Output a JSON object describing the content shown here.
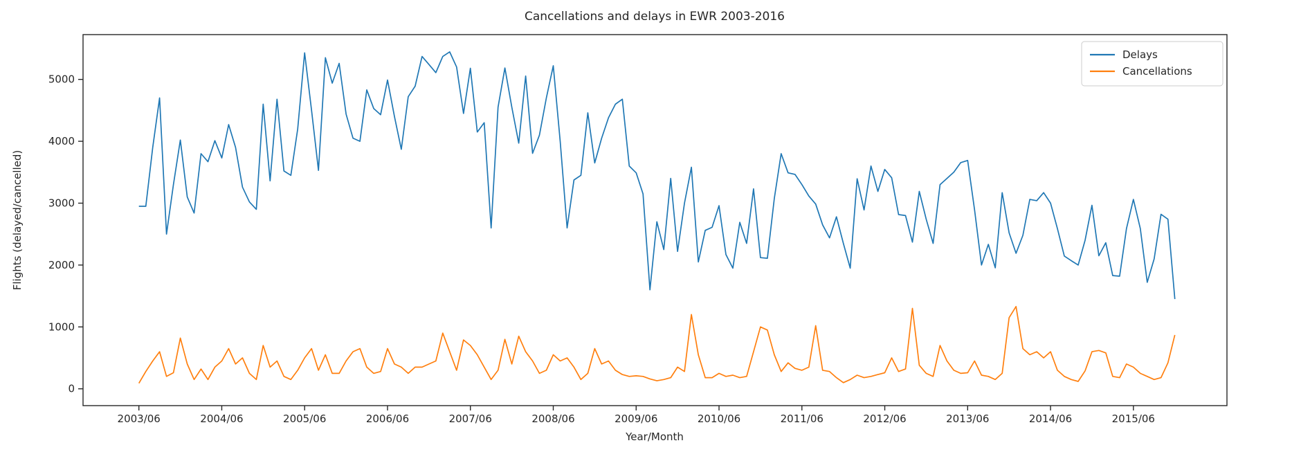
{
  "figure": {
    "title": "Cancellations and delays in EWR 2003-2016",
    "xlabel": "Year/Month",
    "ylabel": "Flights (delayed/cancelled)",
    "background": "#ffffff",
    "spine_color": "#262626"
  },
  "legend": {
    "position": "upper right",
    "items": [
      {
        "label": "Delays",
        "color": "#1f77b4"
      },
      {
        "label": "Cancellations",
        "color": "#ff7f0e"
      }
    ]
  },
  "axes": {
    "x_tick_labels": [
      "2003/06",
      "2004/06",
      "2005/06",
      "2006/06",
      "2007/06",
      "2008/06",
      "2009/06",
      "2010/06",
      "2011/06",
      "2012/06",
      "2013/06",
      "2014/06",
      "2015/06"
    ],
    "x_tick_month_index": [
      0,
      12,
      24,
      36,
      48,
      60,
      72,
      84,
      96,
      108,
      120,
      132,
      144
    ],
    "y_tick_labels": [
      "0",
      "1000",
      "2000",
      "3000",
      "4000",
      "5000"
    ],
    "y_tick_values": [
      0,
      1000,
      2000,
      3000,
      4000,
      5000
    ],
    "grid": false
  },
  "chart_data": {
    "type": "line",
    "title": "Cancellations and delays in EWR 2003-2016",
    "xlabel": "Year/Month",
    "ylabel": "Flights (delayed/cancelled)",
    "x_start": "2003/06",
    "x_end": "2015/12",
    "ylim": [
      -270,
      5730
    ],
    "legend_position": "upper right",
    "x": [
      "2003/06",
      "2003/07",
      "2003/08",
      "2003/09",
      "2003/10",
      "2003/11",
      "2003/12",
      "2004/01",
      "2004/02",
      "2004/03",
      "2004/04",
      "2004/05",
      "2004/06",
      "2004/07",
      "2004/08",
      "2004/09",
      "2004/10",
      "2004/11",
      "2004/12",
      "2005/01",
      "2005/02",
      "2005/03",
      "2005/04",
      "2005/05",
      "2005/06",
      "2005/07",
      "2005/08",
      "2005/09",
      "2005/10",
      "2005/11",
      "2005/12",
      "2006/01",
      "2006/02",
      "2006/03",
      "2006/04",
      "2006/05",
      "2006/06",
      "2006/07",
      "2006/08",
      "2006/09",
      "2006/10",
      "2006/11",
      "2006/12",
      "2007/01",
      "2007/02",
      "2007/03",
      "2007/04",
      "2007/05",
      "2007/06",
      "2007/07",
      "2007/08",
      "2007/09",
      "2007/10",
      "2007/11",
      "2007/12",
      "2008/01",
      "2008/02",
      "2008/03",
      "2008/04",
      "2008/05",
      "2008/06",
      "2008/07",
      "2008/08",
      "2008/09",
      "2008/10",
      "2008/11",
      "2008/12",
      "2009/01",
      "2009/02",
      "2009/03",
      "2009/04",
      "2009/05",
      "2009/06",
      "2009/07",
      "2009/08",
      "2009/09",
      "2009/10",
      "2009/11",
      "2009/12",
      "2010/01",
      "2010/02",
      "2010/03",
      "2010/04",
      "2010/05",
      "2010/06",
      "2010/07",
      "2010/08",
      "2010/09",
      "2010/10",
      "2010/11",
      "2010/12",
      "2011/01",
      "2011/02",
      "2011/03",
      "2011/04",
      "2011/05",
      "2011/06",
      "2011/07",
      "2011/08",
      "2011/09",
      "2011/10",
      "2011/11",
      "2011/12",
      "2012/01",
      "2012/02",
      "2012/03",
      "2012/04",
      "2012/05",
      "2012/06",
      "2012/07",
      "2012/08",
      "2012/09",
      "2012/10",
      "2012/11",
      "2012/12",
      "2013/01",
      "2013/02",
      "2013/03",
      "2013/04",
      "2013/05",
      "2013/06",
      "2013/07",
      "2013/08",
      "2013/09",
      "2013/10",
      "2013/11",
      "2013/12",
      "2014/01",
      "2014/02",
      "2014/03",
      "2014/04",
      "2014/05",
      "2014/06",
      "2014/07",
      "2014/08",
      "2014/09",
      "2014/10",
      "2014/11",
      "2014/12",
      "2015/01",
      "2015/02",
      "2015/03",
      "2015/04",
      "2015/05",
      "2015/06",
      "2015/07",
      "2015/08",
      "2015/09",
      "2015/10",
      "2015/11",
      "2015/12"
    ],
    "series": [
      {
        "name": "Delays",
        "color": "#1f77b4",
        "values": [
          2950,
          2950,
          3900,
          4700,
          2500,
          3300,
          4020,
          3100,
          2840,
          3800,
          3670,
          4010,
          3730,
          4270,
          3900,
          3260,
          3020,
          2900,
          4600,
          3360,
          4680,
          3520,
          3450,
          4200,
          5430,
          4500,
          3530,
          5350,
          4940,
          5260,
          4440,
          4050,
          4000,
          4830,
          4530,
          4430,
          4990,
          4400,
          3870,
          4720,
          4890,
          5370,
          5240,
          5110,
          5370,
          5445,
          5200,
          4450,
          5180,
          4150,
          4300,
          2600,
          4550,
          5185,
          4550,
          3970,
          5055,
          3805,
          4100,
          4700,
          5220,
          4000,
          2600,
          3375,
          3450,
          4460,
          3650,
          4050,
          4380,
          4600,
          4680,
          3600,
          3490,
          3150,
          1600,
          2700,
          2250,
          3400,
          2220,
          3000,
          3580,
          2050,
          2560,
          2610,
          2960,
          2170,
          1950,
          2690,
          2350,
          3230,
          2120,
          2110,
          3075,
          3800,
          3490,
          3465,
          3300,
          3115,
          2985,
          2650,
          2440,
          2780,
          2350,
          1950,
          3395,
          2890,
          3600,
          3190,
          3545,
          3410,
          2815,
          2800,
          2370,
          3190,
          2740,
          2350,
          3300,
          3400,
          3500,
          3655,
          3690,
          2890,
          2000,
          2335,
          1955,
          3170,
          2520,
          2190,
          2480,
          3060,
          3040,
          3170,
          3000,
          2590,
          2145,
          2070,
          2000,
          2400,
          2965,
          2150,
          2360,
          1830,
          1820,
          2590,
          3060,
          2590,
          1720,
          2100,
          2820,
          2740,
          1450
        ]
      },
      {
        "name": "Cancellations",
        "color": "#ff7f0e",
        "values": [
          90,
          280,
          450,
          600,
          200,
          260,
          820,
          400,
          150,
          320,
          150,
          350,
          450,
          650,
          400,
          500,
          250,
          150,
          700,
          350,
          450,
          200,
          150,
          300,
          500,
          650,
          300,
          550,
          250,
          250,
          450,
          600,
          650,
          350,
          250,
          280,
          650,
          400,
          350,
          250,
          350,
          350,
          400,
          450,
          900,
          600,
          300,
          790,
          700,
          550,
          350,
          150,
          300,
          800,
          400,
          850,
          600,
          450,
          250,
          300,
          550,
          450,
          500,
          350,
          150,
          250,
          650,
          400,
          450,
          300,
          230,
          200,
          210,
          200,
          160,
          130,
          150,
          180,
          350,
          280,
          1200,
          550,
          180,
          180,
          250,
          200,
          220,
          180,
          200,
          600,
          1000,
          950,
          550,
          280,
          420,
          330,
          300,
          350,
          1020,
          300,
          280,
          180,
          100,
          150,
          220,
          180,
          200,
          230,
          260,
          500,
          280,
          320,
          1300,
          380,
          250,
          200,
          700,
          450,
          300,
          250,
          260,
          450,
          220,
          200,
          150,
          250,
          1150,
          1330,
          650,
          550,
          600,
          500,
          600,
          300,
          200,
          150,
          120,
          290,
          600,
          620,
          580,
          200,
          180,
          400,
          350,
          250,
          200,
          150,
          180,
          420,
          870
        ]
      }
    ]
  }
}
